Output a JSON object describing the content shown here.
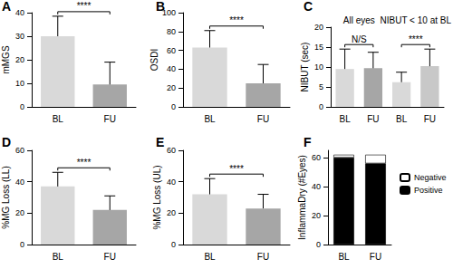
{
  "chart_data": [
    {
      "type": "bar",
      "title": "A",
      "y_label": "mMGS",
      "categories": [
        "BL",
        "FU"
      ],
      "values": [
        30,
        9.5
      ],
      "errors": [
        8.5,
        9.5
      ],
      "colors": [
        "#d9d9d9",
        "#a6a6a6"
      ],
      "ylim": [
        0,
        40
      ],
      "yticks": [
        0,
        10,
        20,
        30,
        40
      ],
      "grid": false,
      "annotations": [
        {
          "text": "****",
          "from": 0,
          "to": 1
        }
      ]
    },
    {
      "type": "bar",
      "title": "B",
      "y_label": "OSDI",
      "categories": [
        "BL",
        "FU"
      ],
      "values": [
        63,
        25
      ],
      "errors": [
        18,
        20
      ],
      "colors": [
        "#d9d9d9",
        "#a6a6a6"
      ],
      "ylim": [
        0,
        100
      ],
      "yticks": [
        0,
        20,
        40,
        60,
        80,
        100
      ],
      "grid": false,
      "annotations": [
        {
          "text": "****",
          "from": 0,
          "to": 1
        }
      ]
    },
    {
      "type": "bar",
      "title": "C",
      "y_label": "NIBUT (sec)",
      "categories": [
        "BL",
        "FU",
        "BL",
        "FU"
      ],
      "values": [
        9.5,
        9.7,
        6.2,
        10.2
      ],
      "errors": [
        5,
        4,
        2.5,
        4.3
      ],
      "colors": [
        "#d9d9d9",
        "#a6a6a6",
        "#d9d9d9",
        "#c8c8c8"
      ],
      "ylim": [
        0,
        20
      ],
      "yticks": [
        0,
        5,
        10,
        15,
        20
      ],
      "grid": false,
      "groups": [
        {
          "label": "All eyes",
          "from": 0,
          "to": 1
        },
        {
          "label": "NIBUT < 10 at BL",
          "from": 2,
          "to": 3
        }
      ],
      "annotations": [
        {
          "text": "N/S",
          "from": 0,
          "to": 1
        },
        {
          "text": "****",
          "from": 2,
          "to": 3
        }
      ]
    },
    {
      "type": "bar",
      "title": "D",
      "y_label": "%MG Loss (LL)",
      "categories": [
        "BL",
        "FU"
      ],
      "values": [
        37,
        22
      ],
      "errors": [
        9,
        9
      ],
      "colors": [
        "#d9d9d9",
        "#a6a6a6"
      ],
      "ylim": [
        0,
        60
      ],
      "yticks": [
        0,
        20,
        40,
        60
      ],
      "grid": false,
      "annotations": [
        {
          "text": "****",
          "from": 0,
          "to": 1
        }
      ]
    },
    {
      "type": "bar",
      "title": "E",
      "y_label": "%MG Loss (UL)",
      "categories": [
        "BL",
        "FU"
      ],
      "values": [
        32,
        23
      ],
      "errors": [
        10,
        9
      ],
      "colors": [
        "#d9d9d9",
        "#a6a6a6"
      ],
      "ylim": [
        0,
        60
      ],
      "yticks": [
        0,
        20,
        40,
        60
      ],
      "grid": false,
      "annotations": [
        {
          "text": "****",
          "from": 0,
          "to": 1
        }
      ]
    },
    {
      "type": "bar",
      "title": "F",
      "y_label": "InflammaDry (#Eyes)",
      "categories": [
        "BL",
        "FU"
      ],
      "stacked": true,
      "series": [
        {
          "name": "Positive",
          "color": "#000000",
          "values": [
            60,
            56
          ]
        },
        {
          "name": "Negative",
          "color": "#ffffff",
          "values": [
            2,
            6
          ]
        }
      ],
      "ylim": [
        0,
        65
      ],
      "yticks": [
        0,
        20,
        40,
        60
      ],
      "grid": false,
      "legend": "right"
    }
  ]
}
